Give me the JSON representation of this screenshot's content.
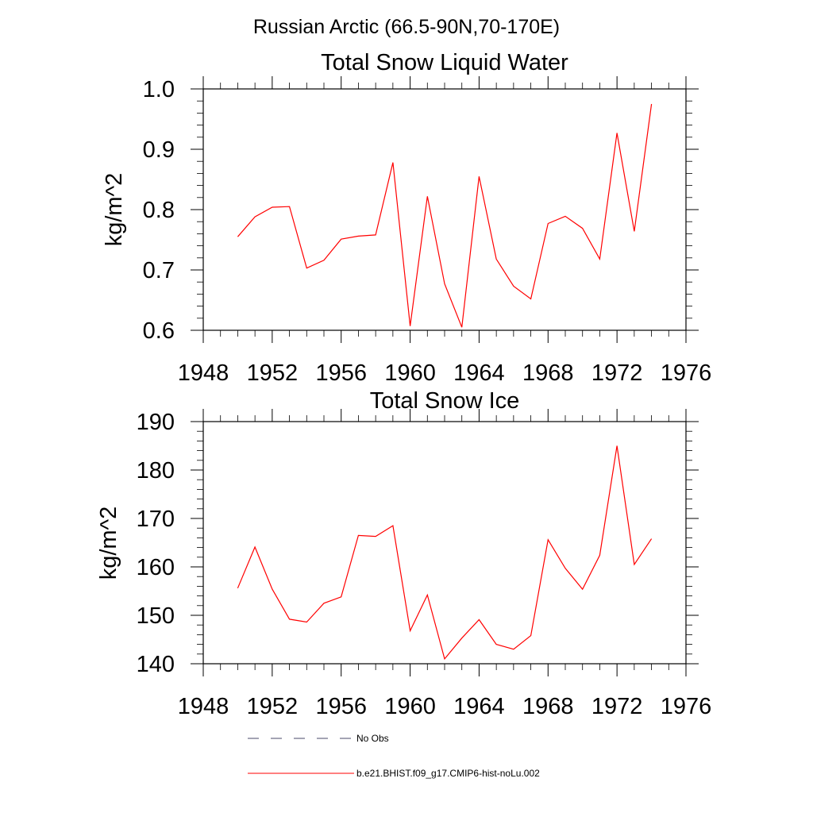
{
  "figure": {
    "suptitle": "Russian Arctic (66.5-90N,70-170E)"
  },
  "chart_data": [
    {
      "type": "line",
      "title": "Total Snow Liquid Water",
      "xlabel": "",
      "ylabel": "kg/m^2",
      "xlim": [
        1948,
        1976
      ],
      "ylim": [
        0.6,
        1.0
      ],
      "xticks": [
        1948,
        1952,
        1956,
        1960,
        1964,
        1968,
        1972,
        1976
      ],
      "yticks": [
        0.6,
        0.7,
        0.8,
        0.9,
        1.0
      ],
      "ytick_labels": [
        "0.6",
        "0.7",
        "0.8",
        "0.9",
        "1.0"
      ],
      "grid": false,
      "x": [
        1950,
        1951,
        1952,
        1953,
        1954,
        1955,
        1956,
        1957,
        1958,
        1959,
        1960,
        1961,
        1962,
        1963,
        1964,
        1965,
        1966,
        1967,
        1968,
        1969,
        1970,
        1971,
        1972,
        1973,
        1974
      ],
      "series": [
        {
          "name": "b.e21.BHIST.f09_g17.CMIP6-hist-noLu.002",
          "color": "#ff0000",
          "values": [
            0.755,
            0.788,
            0.804,
            0.805,
            0.703,
            0.716,
            0.751,
            0.756,
            0.758,
            0.878,
            0.607,
            0.822,
            0.677,
            0.605,
            0.855,
            0.718,
            0.673,
            0.652,
            0.777,
            0.789,
            0.769,
            0.718,
            0.927,
            0.764,
            0.975
          ]
        }
      ]
    },
    {
      "type": "line",
      "title": "Total Snow Ice",
      "xlabel": "",
      "ylabel": "kg/m^2",
      "xlim": [
        1948,
        1976
      ],
      "ylim": [
        140,
        190
      ],
      "xticks": [
        1948,
        1952,
        1956,
        1960,
        1964,
        1968,
        1972,
        1976
      ],
      "yticks": [
        140,
        150,
        160,
        170,
        180,
        190
      ],
      "ytick_labels": [
        "140",
        "150",
        "160",
        "170",
        "180",
        "190"
      ],
      "grid": false,
      "x": [
        1950,
        1951,
        1952,
        1953,
        1954,
        1955,
        1956,
        1957,
        1958,
        1959,
        1960,
        1961,
        1962,
        1963,
        1964,
        1965,
        1966,
        1967,
        1968,
        1969,
        1970,
        1971,
        1972,
        1973,
        1974
      ],
      "series": [
        {
          "name": "b.e21.BHIST.f09_g17.CMIP6-hist-noLu.002",
          "color": "#ff0000",
          "values": [
            155.6,
            164.1,
            155.4,
            149.2,
            148.6,
            152.5,
            153.8,
            166.5,
            166.3,
            168.5,
            146.8,
            154.2,
            141.0,
            145.3,
            149.1,
            144.0,
            143.0,
            145.8,
            165.6,
            159.7,
            155.4,
            162.4,
            185.0,
            160.5,
            165.8
          ]
        }
      ]
    }
  ],
  "legend": [
    {
      "label": "No Obs",
      "style": "dashed",
      "color": "#4a4a6a"
    },
    {
      "label": "b.e21.BHIST.f09_g17.CMIP6-hist-noLu.002",
      "style": "solid",
      "color": "#ff0000"
    }
  ]
}
